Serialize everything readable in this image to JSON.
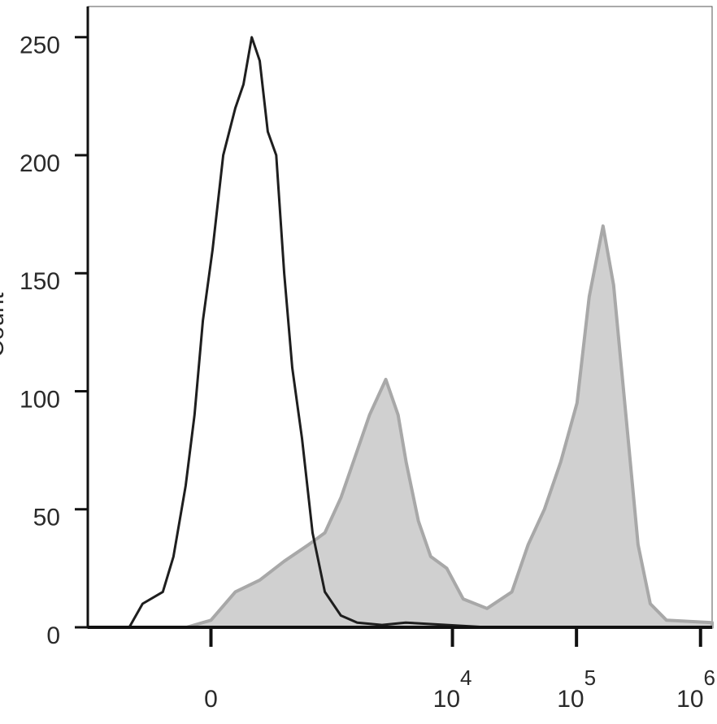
{
  "chart_data": {
    "type": "histogram-overlay",
    "y_label": "Count",
    "xscale": "biexponential",
    "xlim": [
      -1100,
      1240000
    ],
    "ylim": [
      0,
      263
    ],
    "yticks": [
      0,
      50,
      100,
      150,
      200,
      250
    ],
    "xticks": [
      {
        "value": 0,
        "label": "0"
      },
      {
        "value": 10000,
        "label": "10",
        "exponent": "4"
      },
      {
        "value": 100000,
        "label": "10",
        "exponent": "5"
      },
      {
        "value": 1000000,
        "label": "10",
        "exponent": "6"
      }
    ],
    "series": [
      {
        "color": "#a8a8a8",
        "fill": "#d0d0d0",
        "x": [
          -1100,
          -106,
          0,
          106,
          234,
          411,
          674,
          922,
          1254,
          1704,
          2140,
          2900,
          3640,
          4230,
          5310,
          6670,
          9000,
          12190,
          19000,
          30170,
          40800,
          55100,
          74600,
          100900,
          126600,
          163600,
          199200,
          250000,
          313500,
          393000,
          532000,
          1240000
        ],
        "values": [
          0,
          0,
          3,
          15,
          20,
          28,
          35,
          40,
          55,
          75,
          90,
          105,
          90,
          70,
          45,
          30,
          25,
          12,
          8,
          15,
          35,
          50,
          70,
          95,
          140,
          170,
          145,
          90,
          35,
          10,
          3,
          2
        ]
      },
      {
        "color": "#1e1e1e",
        "fill": "none",
        "x": [
          -1100,
          -490,
          -370,
          -230,
          -170,
          -110,
          -70,
          -34,
          7,
          52,
          106,
          145,
          188,
          234,
          285,
          346,
          411,
          486,
          592,
          728,
          922,
          1250,
          1700,
          2700,
          4200,
          9000,
          19000,
          1240000
        ],
        "values": [
          0,
          0,
          10,
          15,
          30,
          60,
          90,
          130,
          160,
          200,
          220,
          230,
          250,
          240,
          210,
          200,
          150,
          110,
          80,
          40,
          15,
          5,
          2,
          1,
          2,
          1,
          0,
          0
        ]
      }
    ]
  }
}
